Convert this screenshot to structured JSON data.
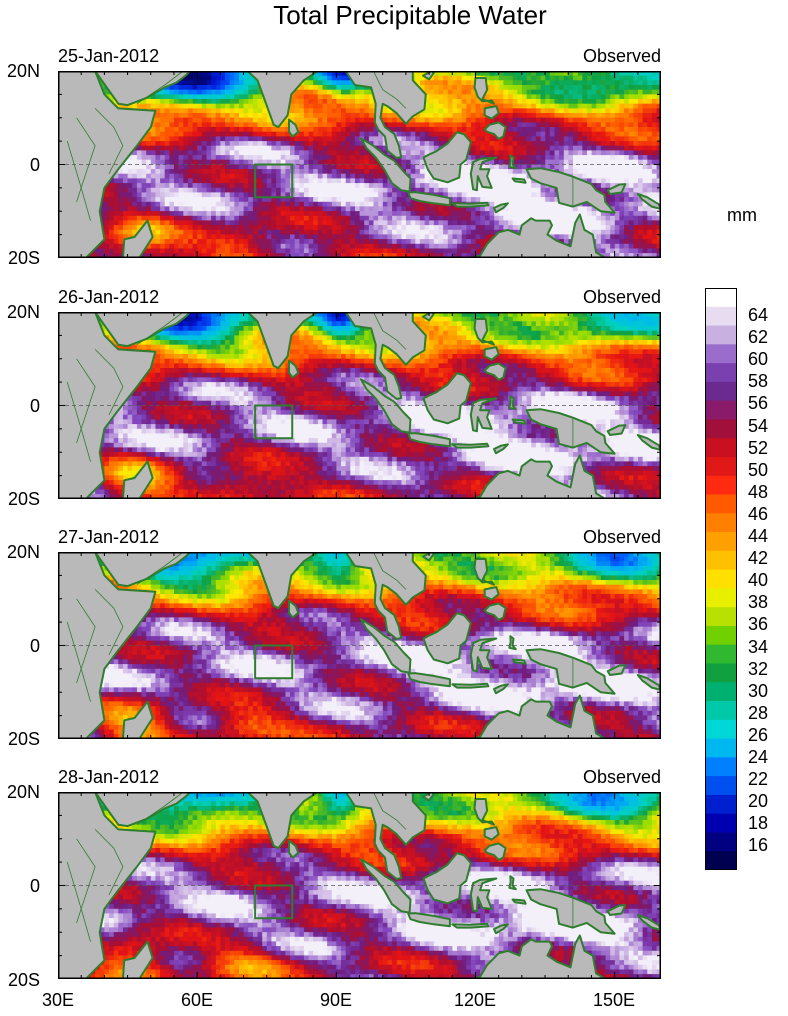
{
  "title": "Total Precipitable Water",
  "units": "mm",
  "panels": [
    {
      "date": "25-Jan-2012",
      "label": "Observed"
    },
    {
      "date": "26-Jan-2012",
      "label": "Observed"
    },
    {
      "date": "27-Jan-2012",
      "label": "Observed"
    },
    {
      "date": "28-Jan-2012",
      "label": "Observed"
    }
  ],
  "lat_labels": [
    "20N",
    "0",
    "20S"
  ],
  "lon_labels": [
    "30E",
    "60E",
    "90E",
    "120E",
    "150E"
  ],
  "colorbar": {
    "labels": [
      "64",
      "62",
      "60",
      "58",
      "56",
      "54",
      "52",
      "50",
      "48",
      "46",
      "44",
      "42",
      "40",
      "38",
      "36",
      "34",
      "32",
      "30",
      "28",
      "26",
      "24",
      "22",
      "20",
      "18",
      "16"
    ],
    "stops": [
      "#ffffff",
      "#e8ddf0",
      "#c8b0e0",
      "#9a6ccc",
      "#7a40b0",
      "#6a2a90",
      "#8a1a6a",
      "#a0103a",
      "#c81020",
      "#e01818",
      "#ff2a10",
      "#ff5a00",
      "#ff8000",
      "#ffa000",
      "#ffc000",
      "#ffe000",
      "#e8f000",
      "#b8e000",
      "#70d000",
      "#30b830",
      "#10a040",
      "#00b070",
      "#00c8a8",
      "#00d8d8",
      "#00b8f0",
      "#0080ff",
      "#0050f0",
      "#0020d0",
      "#0000b0",
      "#000080",
      "#000050"
    ]
  },
  "colors": {
    "land": "#b9b9b9",
    "coast": "#2f7d2f",
    "box": "#2f7d2f"
  }
}
